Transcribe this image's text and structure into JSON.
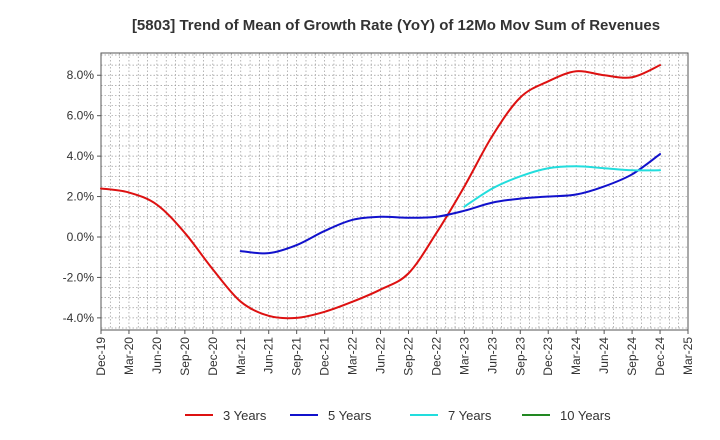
{
  "chart_data": {
    "type": "line",
    "title": "[5803]  Trend of Mean of Growth Rate (YoY) of 12Mo Mov Sum of Revenues",
    "xlabel": "",
    "ylabel": "",
    "ylim": [
      -4.6,
      9.1
    ],
    "y_ticks": [
      8.0,
      6.0,
      4.0,
      2.0,
      0.0,
      -2.0,
      -4.0
    ],
    "y_tick_labels": [
      "8.0%",
      "6.0%",
      "4.0%",
      "2.0%",
      "0.0%",
      "-2.0%",
      "-4.0%"
    ],
    "x_tick_labels": [
      "Dec-19",
      "Mar-20",
      "Jun-20",
      "Sep-20",
      "Dec-20",
      "Mar-21",
      "Jun-21",
      "Sep-21",
      "Dec-21",
      "Mar-22",
      "Jun-22",
      "Sep-22",
      "Dec-22",
      "Mar-23",
      "Jun-23",
      "Sep-23",
      "Dec-23",
      "Mar-24",
      "Jun-24",
      "Sep-24",
      "Dec-24",
      "Mar-25"
    ],
    "grid": true,
    "legend_position": "bottom",
    "series": [
      {
        "name": "3 Years",
        "color": "#dd1111",
        "points": [
          [
            0,
            2.4
          ],
          [
            1,
            2.2
          ],
          [
            2,
            1.6
          ],
          [
            3,
            0.2
          ],
          [
            4,
            -1.6
          ],
          [
            5,
            -3.2
          ],
          [
            6,
            -3.9
          ],
          [
            7,
            -4.0
          ],
          [
            8,
            -3.7
          ],
          [
            9,
            -3.2
          ],
          [
            10,
            -2.6
          ],
          [
            11,
            -1.8
          ],
          [
            12,
            0.2
          ],
          [
            13,
            2.5
          ],
          [
            14,
            5.0
          ],
          [
            15,
            6.9
          ],
          [
            16,
            7.7
          ],
          [
            17,
            8.2
          ],
          [
            18,
            8.0
          ],
          [
            19,
            7.9
          ],
          [
            20,
            8.5
          ]
        ]
      },
      {
        "name": "5 Years",
        "color": "#1111cc",
        "points": [
          [
            5,
            -0.7
          ],
          [
            6,
            -0.8
          ],
          [
            7,
            -0.4
          ],
          [
            8,
            0.3
          ],
          [
            9,
            0.85
          ],
          [
            10,
            1.0
          ],
          [
            11,
            0.95
          ],
          [
            12,
            1.0
          ],
          [
            13,
            1.3
          ],
          [
            14,
            1.7
          ],
          [
            15,
            1.9
          ],
          [
            16,
            2.0
          ],
          [
            17,
            2.1
          ],
          [
            18,
            2.5
          ],
          [
            19,
            3.1
          ],
          [
            20,
            4.1
          ]
        ]
      },
      {
        "name": "7 Years",
        "color": "#22dddd",
        "points": [
          [
            13,
            1.5
          ],
          [
            14,
            2.4
          ],
          [
            15,
            3.0
          ],
          [
            16,
            3.4
          ],
          [
            17,
            3.5
          ],
          [
            18,
            3.4
          ],
          [
            19,
            3.3
          ],
          [
            20,
            3.3
          ]
        ]
      },
      {
        "name": "10 Years",
        "color": "#228822",
        "points": []
      }
    ]
  }
}
